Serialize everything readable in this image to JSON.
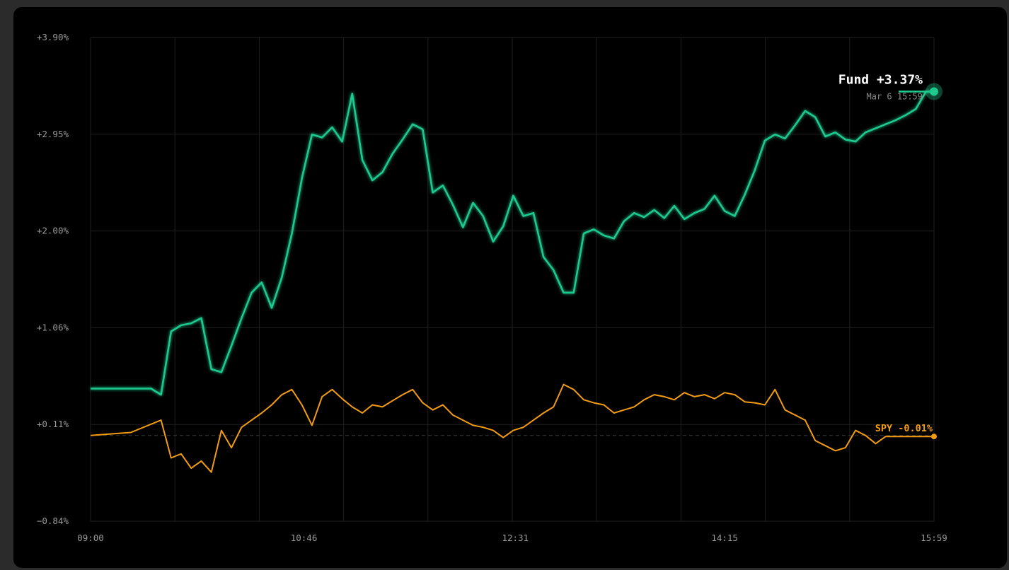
{
  "colors": {
    "fund": "#1fc98e",
    "spy": "#f39c12",
    "grid": "#1f1f1f",
    "background": "#000000",
    "frame": "#2b2b2b"
  },
  "chart_data": {
    "type": "line",
    "ylim": [
      -0.84,
      3.9
    ],
    "y_ticks": [
      "+3.90%",
      "+2.95%",
      "+2.00%",
      "+1.06%",
      "+0.11%",
      "−0.84%"
    ],
    "x_ticks": [
      "09:00",
      "10:46",
      "12:31",
      "14:15",
      "15:59"
    ],
    "x_range": [
      "09:00",
      "15:59"
    ],
    "baseline": 0.0,
    "grid": true,
    "series": [
      {
        "name": "Fund",
        "last_label": "Fund +3.37%",
        "last_date": "Mar 6 15:59",
        "x": [
          "09:00",
          "09:30",
          "09:35",
          "09:40",
          "09:45",
          "09:50",
          "09:55",
          "10:00",
          "10:05",
          "10:10",
          "10:15",
          "10:20",
          "10:25",
          "10:30",
          "10:35",
          "10:40",
          "10:45",
          "10:50",
          "10:55",
          "11:00",
          "11:05",
          "11:10",
          "11:15",
          "11:20",
          "11:25",
          "11:30",
          "11:35",
          "11:40",
          "11:45",
          "11:50",
          "11:55",
          "12:00",
          "12:05",
          "12:10",
          "12:15",
          "12:20",
          "12:25",
          "12:30",
          "12:35",
          "12:40",
          "12:45",
          "12:50",
          "12:55",
          "13:00",
          "13:05",
          "13:10",
          "13:15",
          "13:20",
          "13:25",
          "13:30",
          "13:35",
          "13:40",
          "13:45",
          "13:50",
          "13:55",
          "14:00",
          "14:05",
          "14:10",
          "14:15",
          "14:20",
          "14:25",
          "14:30",
          "14:35",
          "14:40",
          "14:45",
          "14:50",
          "14:55",
          "15:00",
          "15:05",
          "15:10",
          "15:15",
          "15:20",
          "15:25",
          "15:30",
          "15:35",
          "15:40",
          "15:45",
          "15:50",
          "15:55",
          "15:59"
        ],
        "y": [
          0.46,
          0.46,
          0.4,
          1.02,
          1.08,
          1.1,
          1.15,
          0.65,
          0.62,
          0.88,
          1.15,
          1.4,
          1.5,
          1.25,
          1.55,
          1.98,
          2.52,
          2.95,
          2.92,
          3.02,
          2.88,
          3.35,
          2.7,
          2.5,
          2.58,
          2.76,
          2.9,
          3.05,
          3.0,
          2.38,
          2.45,
          2.26,
          2.04,
          2.28,
          2.15,
          1.9,
          2.05,
          2.35,
          2.15,
          2.18,
          1.75,
          1.62,
          1.4,
          1.4,
          1.98,
          2.02,
          1.96,
          1.93,
          2.1,
          2.18,
          2.14,
          2.21,
          2.13,
          2.25,
          2.12,
          2.18,
          2.22,
          2.35,
          2.2,
          2.15,
          2.36,
          2.6,
          2.89,
          2.95,
          2.91,
          3.04,
          3.18,
          3.12,
          2.93,
          2.97,
          2.9,
          2.88,
          2.97,
          3.01,
          3.05,
          3.09,
          3.14,
          3.2,
          3.37,
          3.37
        ]
      },
      {
        "name": "SPY",
        "last_label": "SPY -0.01%",
        "x": [
          "09:00",
          "09:20",
          "09:35",
          "09:40",
          "09:45",
          "09:50",
          "09:55",
          "10:00",
          "10:05",
          "10:10",
          "10:15",
          "10:20",
          "10:25",
          "10:30",
          "10:35",
          "10:40",
          "10:45",
          "10:50",
          "10:55",
          "11:00",
          "11:05",
          "11:10",
          "11:15",
          "11:20",
          "11:25",
          "11:30",
          "11:35",
          "11:40",
          "11:45",
          "11:50",
          "11:55",
          "12:00",
          "12:05",
          "12:10",
          "12:15",
          "12:20",
          "12:25",
          "12:30",
          "12:35",
          "12:40",
          "12:45",
          "12:50",
          "12:55",
          "13:00",
          "13:05",
          "13:10",
          "13:15",
          "13:20",
          "13:25",
          "13:30",
          "13:35",
          "13:40",
          "13:45",
          "13:50",
          "13:55",
          "14:00",
          "14:05",
          "14:10",
          "14:15",
          "14:20",
          "14:25",
          "14:30",
          "14:35",
          "14:40",
          "14:45",
          "14:50",
          "14:55",
          "15:00",
          "15:05",
          "15:10",
          "15:15",
          "15:20",
          "15:25",
          "15:30",
          "15:35",
          "15:40",
          "15:45",
          "15:50",
          "15:55",
          "15:59"
        ],
        "y": [
          0.0,
          0.03,
          0.15,
          -0.22,
          -0.18,
          -0.32,
          -0.25,
          -0.36,
          0.05,
          -0.12,
          0.08,
          0.15,
          0.22,
          0.3,
          0.4,
          0.45,
          0.3,
          0.1,
          0.38,
          0.45,
          0.36,
          0.28,
          0.22,
          0.3,
          0.28,
          0.34,
          0.4,
          0.45,
          0.32,
          0.25,
          0.3,
          0.2,
          0.15,
          0.1,
          0.08,
          0.05,
          -0.02,
          0.05,
          0.08,
          0.15,
          0.22,
          0.28,
          0.5,
          0.45,
          0.35,
          0.32,
          0.3,
          0.22,
          0.25,
          0.28,
          0.35,
          0.4,
          0.38,
          0.35,
          0.42,
          0.38,
          0.4,
          0.36,
          0.42,
          0.4,
          0.33,
          0.32,
          0.3,
          0.45,
          0.25,
          0.2,
          0.15,
          -0.05,
          -0.1,
          -0.15,
          -0.12,
          0.05,
          0.0,
          -0.08,
          -0.01,
          -0.01,
          -0.01,
          -0.01,
          -0.01,
          -0.01
        ]
      }
    ]
  }
}
